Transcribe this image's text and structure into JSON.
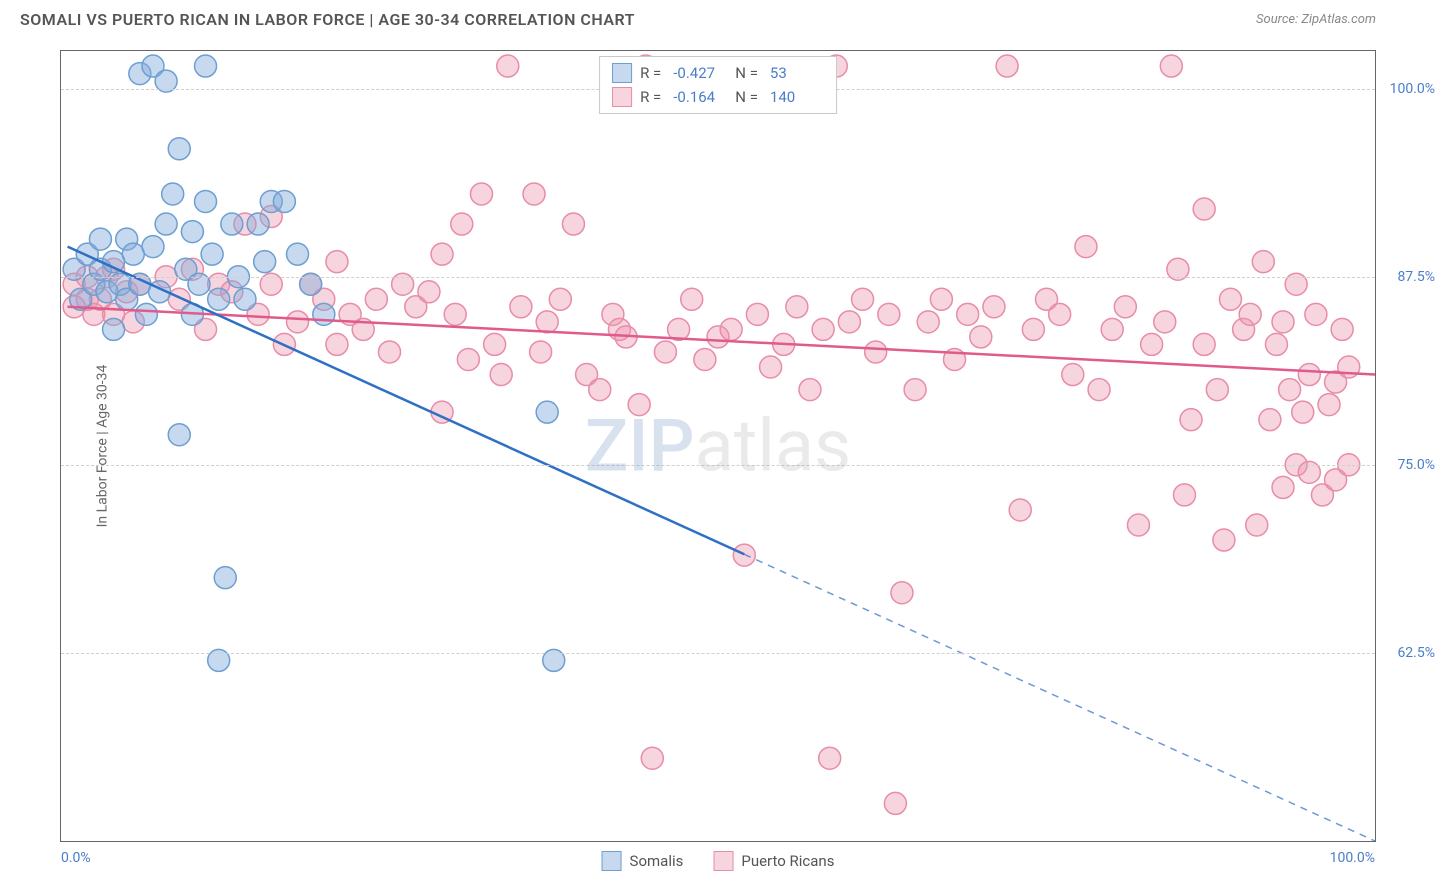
{
  "header": {
    "title": "SOMALI VS PUERTO RICAN IN LABOR FORCE | AGE 30-34 CORRELATION CHART",
    "source": "Source: ZipAtlas.com"
  },
  "chart": {
    "type": "scatter",
    "y_axis_label": "In Labor Force | Age 30-34",
    "xlim": [
      0,
      100
    ],
    "ylim": [
      50,
      102.5
    ],
    "x_ticks": [
      {
        "value": 0,
        "label": "0.0%"
      },
      {
        "value": 100,
        "label": "100.0%"
      }
    ],
    "y_ticks": [
      {
        "value": 62.5,
        "label": "62.5%"
      },
      {
        "value": 75.0,
        "label": "75.0%"
      },
      {
        "value": 87.5,
        "label": "87.5%"
      },
      {
        "value": 100.0,
        "label": "100.0%"
      }
    ],
    "background_color": "#ffffff",
    "grid_color": "#d0d0d0",
    "series": {
      "somalis": {
        "label": "Somalis",
        "color_fill": "rgba(130,170,220,0.45)",
        "color_stroke": "#6d9fd1",
        "marker_radius": 11,
        "R": "-0.427",
        "N": "53",
        "regression": {
          "color": "#2f6fc4",
          "width": 2.5,
          "solid_end_x": 52,
          "x1": 0.5,
          "y1": 89.5,
          "x2": 100,
          "y2": 50
        },
        "points": [
          [
            1,
            88
          ],
          [
            1.5,
            86
          ],
          [
            2,
            89
          ],
          [
            2.5,
            87
          ],
          [
            3,
            88
          ],
          [
            3,
            90
          ],
          [
            3.5,
            86.5
          ],
          [
            4,
            88.5
          ],
          [
            4,
            84
          ],
          [
            4.5,
            87
          ],
          [
            5,
            90
          ],
          [
            5,
            86
          ],
          [
            5.5,
            89
          ],
          [
            6,
            87
          ],
          [
            6,
            101
          ],
          [
            6.5,
            85
          ],
          [
            7,
            101.5
          ],
          [
            7,
            89.5
          ],
          [
            7.5,
            86.5
          ],
          [
            8,
            91
          ],
          [
            8,
            100.5
          ],
          [
            8.5,
            93
          ],
          [
            9,
            96
          ],
          [
            9,
            77
          ],
          [
            9.5,
            88
          ],
          [
            10,
            90.5
          ],
          [
            10,
            85
          ],
          [
            10.5,
            87
          ],
          [
            11,
            92.5
          ],
          [
            11,
            101.5
          ],
          [
            11.5,
            89
          ],
          [
            12,
            86
          ],
          [
            12,
            62
          ],
          [
            12.5,
            67.5
          ],
          [
            13,
            91
          ],
          [
            13.5,
            87.5
          ],
          [
            14,
            86
          ],
          [
            15,
            91
          ],
          [
            15.5,
            88.5
          ],
          [
            16,
            92.5
          ],
          [
            17,
            92.5
          ],
          [
            18,
            89
          ],
          [
            19,
            87
          ],
          [
            20,
            85
          ],
          [
            37,
            78.5
          ],
          [
            37.5,
            62
          ]
        ]
      },
      "puerto_ricans": {
        "label": "Puerto Ricans",
        "color_fill": "rgba(235,150,175,0.4)",
        "color_stroke": "#e88ca8",
        "marker_radius": 11,
        "R": "-0.164",
        "N": "140",
        "regression": {
          "color": "#e05a8c",
          "width": 2.5,
          "x1": 0.5,
          "y1": 85.5,
          "x2": 100,
          "y2": 81
        },
        "points": [
          [
            1,
            85.5
          ],
          [
            1,
            87
          ],
          [
            2,
            86
          ],
          [
            2,
            87.5
          ],
          [
            2.5,
            85
          ],
          [
            3,
            86
          ],
          [
            3.5,
            87.5
          ],
          [
            4,
            88
          ],
          [
            4,
            85
          ],
          [
            5,
            86.5
          ],
          [
            5.5,
            84.5
          ],
          [
            6,
            87
          ],
          [
            8,
            87.5
          ],
          [
            9,
            86
          ],
          [
            10,
            88
          ],
          [
            11,
            84
          ],
          [
            12,
            87
          ],
          [
            13,
            86.5
          ],
          [
            14,
            91
          ],
          [
            15,
            85
          ],
          [
            16,
            87
          ],
          [
            16,
            91.5
          ],
          [
            17,
            83
          ],
          [
            18,
            84.5
          ],
          [
            19,
            87
          ],
          [
            20,
            86
          ],
          [
            21,
            88.5
          ],
          [
            21,
            83
          ],
          [
            22,
            85
          ],
          [
            23,
            84
          ],
          [
            24,
            86
          ],
          [
            25,
            82.5
          ],
          [
            26,
            87
          ],
          [
            27,
            85.5
          ],
          [
            28,
            86.5
          ],
          [
            29,
            78.5
          ],
          [
            29,
            89
          ],
          [
            30,
            85
          ],
          [
            30.5,
            91
          ],
          [
            31,
            82
          ],
          [
            32,
            93
          ],
          [
            33,
            83
          ],
          [
            33.5,
            81
          ],
          [
            34,
            101.5
          ],
          [
            35,
            85.5
          ],
          [
            36,
            93
          ],
          [
            36.5,
            82.5
          ],
          [
            37,
            84.5
          ],
          [
            38,
            86
          ],
          [
            39,
            91
          ],
          [
            40,
            81
          ],
          [
            41,
            80
          ],
          [
            42,
            85
          ],
          [
            42.5,
            84
          ],
          [
            43,
            83.5
          ],
          [
            44,
            79
          ],
          [
            44.5,
            101.5
          ],
          [
            45,
            55.5
          ],
          [
            46,
            82.5
          ],
          [
            47,
            84
          ],
          [
            48,
            86
          ],
          [
            49,
            82
          ],
          [
            50,
            83.5
          ],
          [
            51,
            84
          ],
          [
            52,
            69
          ],
          [
            53,
            85
          ],
          [
            54,
            81.5
          ],
          [
            55,
            83
          ],
          [
            56,
            85.5
          ],
          [
            57,
            80
          ],
          [
            58,
            84
          ],
          [
            58.5,
            55.5
          ],
          [
            59,
            101.5
          ],
          [
            60,
            84.5
          ],
          [
            61,
            86
          ],
          [
            62,
            82.5
          ],
          [
            63,
            85
          ],
          [
            63.5,
            52.5
          ],
          [
            64,
            66.5
          ],
          [
            65,
            80
          ],
          [
            66,
            84.5
          ],
          [
            67,
            86
          ],
          [
            68,
            82
          ],
          [
            69,
            85
          ],
          [
            70,
            83.5
          ],
          [
            71,
            85.5
          ],
          [
            72,
            101.5
          ],
          [
            73,
            72
          ],
          [
            74,
            84
          ],
          [
            75,
            86
          ],
          [
            76,
            85
          ],
          [
            77,
            81
          ],
          [
            78,
            89.5
          ],
          [
            79,
            80
          ],
          [
            80,
            84
          ],
          [
            81,
            85.5
          ],
          [
            82,
            71
          ],
          [
            83,
            83
          ],
          [
            84,
            84.5
          ],
          [
            84.5,
            101.5
          ],
          [
            85,
            88
          ],
          [
            85.5,
            73
          ],
          [
            86,
            78
          ],
          [
            87,
            92
          ],
          [
            87,
            83
          ],
          [
            88,
            80
          ],
          [
            88.5,
            70
          ],
          [
            89,
            86
          ],
          [
            90,
            84
          ],
          [
            90.5,
            85
          ],
          [
            91,
            71
          ],
          [
            91.5,
            88.5
          ],
          [
            92,
            78
          ],
          [
            92.5,
            83
          ],
          [
            93,
            73.5
          ],
          [
            93,
            84.5
          ],
          [
            93.5,
            80
          ],
          [
            94,
            87
          ],
          [
            94,
            75
          ],
          [
            94.5,
            78.5
          ],
          [
            95,
            81
          ],
          [
            95,
            74.5
          ],
          [
            95.5,
            85
          ],
          [
            96,
            73
          ],
          [
            96.5,
            79
          ],
          [
            97,
            80.5
          ],
          [
            97,
            74
          ],
          [
            97.5,
            84
          ],
          [
            98,
            81.5
          ],
          [
            98,
            75
          ]
        ]
      }
    },
    "watermark": "ZIPatlas",
    "legend_top": {
      "r_label": "R =",
      "n_label": "N ="
    }
  }
}
